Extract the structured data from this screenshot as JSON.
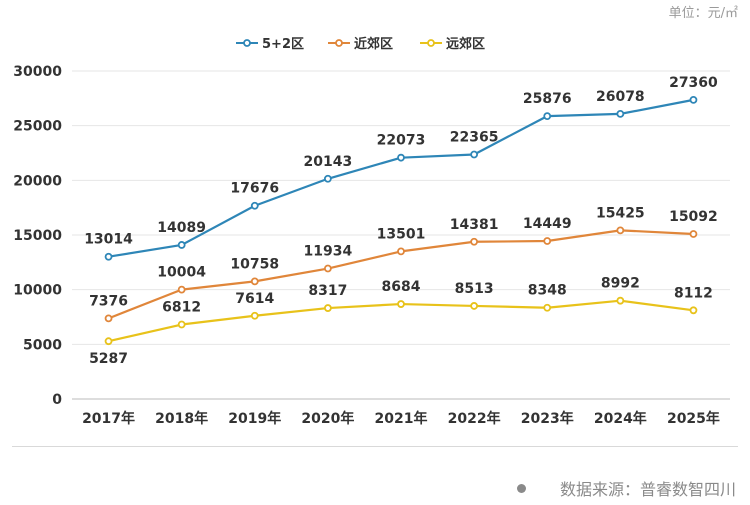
{
  "header": {
    "unit_label": "单位：元/㎡"
  },
  "footer": {
    "source": "数据来源：普睿数智四川"
  },
  "colors": {
    "series": [
      "#2E86B7",
      "#E0863A",
      "#E8C21A"
    ],
    "grid": "#e6e6e6",
    "axis": "#bbbbbb"
  },
  "chart_data": {
    "type": "line",
    "title": "",
    "xlabel": "",
    "ylabel": "",
    "categories": [
      "2017年",
      "2018年",
      "2019年",
      "2020年",
      "2021年",
      "2022年",
      "2023年",
      "2024年",
      "2025年"
    ],
    "ylim": [
      0,
      30000
    ],
    "yticks": [
      0,
      5000,
      10000,
      15000,
      20000,
      25000,
      30000
    ],
    "grid": true,
    "legend_position": "top-center",
    "series": [
      {
        "name": "5+2区",
        "values": [
          13014,
          14089,
          17676,
          20143,
          22073,
          22365,
          25876,
          26078,
          27360
        ]
      },
      {
        "name": "近郊区",
        "values": [
          7376,
          10004,
          10758,
          11934,
          13501,
          14381,
          14449,
          15425,
          15092
        ]
      },
      {
        "name": "远郊区",
        "values": [
          5287,
          6812,
          7614,
          8317,
          8684,
          8513,
          8348,
          8992,
          8112
        ]
      }
    ]
  }
}
